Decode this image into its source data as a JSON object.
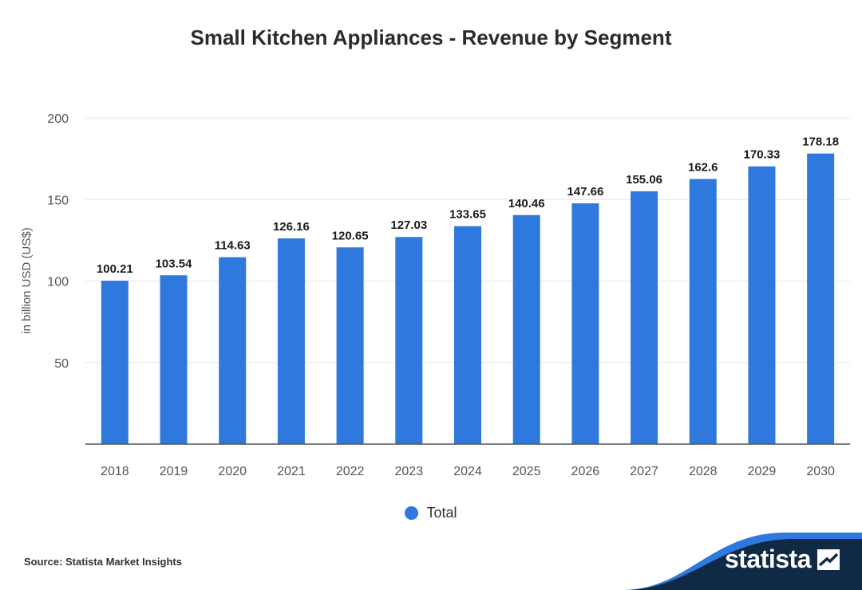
{
  "chart_data": {
    "type": "bar",
    "title": "Small Kitchen Appliances - Revenue by Segment",
    "xlabel": "",
    "ylabel": "in billion USD (US$)",
    "categories": [
      "2018",
      "2019",
      "2020",
      "2021",
      "2022",
      "2023",
      "2024",
      "2025",
      "2026",
      "2027",
      "2028",
      "2029",
      "2030"
    ],
    "series": [
      {
        "name": "Total",
        "values": [
          100.21,
          103.54,
          114.63,
          126.16,
          120.65,
          127.03,
          133.65,
          140.46,
          147.66,
          155.06,
          162.6,
          170.33,
          178.18
        ],
        "labels": [
          "100.21",
          "103.54",
          "114.63",
          "126.16",
          "120.65",
          "127.03",
          "133.65",
          "140.46",
          "147.66",
          "155.06",
          "162.6",
          "170.33",
          "178.18"
        ]
      }
    ],
    "ylim": [
      0,
      200
    ],
    "yticks": [
      50,
      100,
      150,
      200
    ],
    "grid": true,
    "legend_position": "bottom-center"
  },
  "colors": {
    "bar": "#2f78dd",
    "grid": "#e6e6e6",
    "axis": "#555555",
    "footer": "#0f2a44",
    "footer_accent": "#2f78dd"
  },
  "source": "Source: Statista Market Insights",
  "brand": "statista"
}
